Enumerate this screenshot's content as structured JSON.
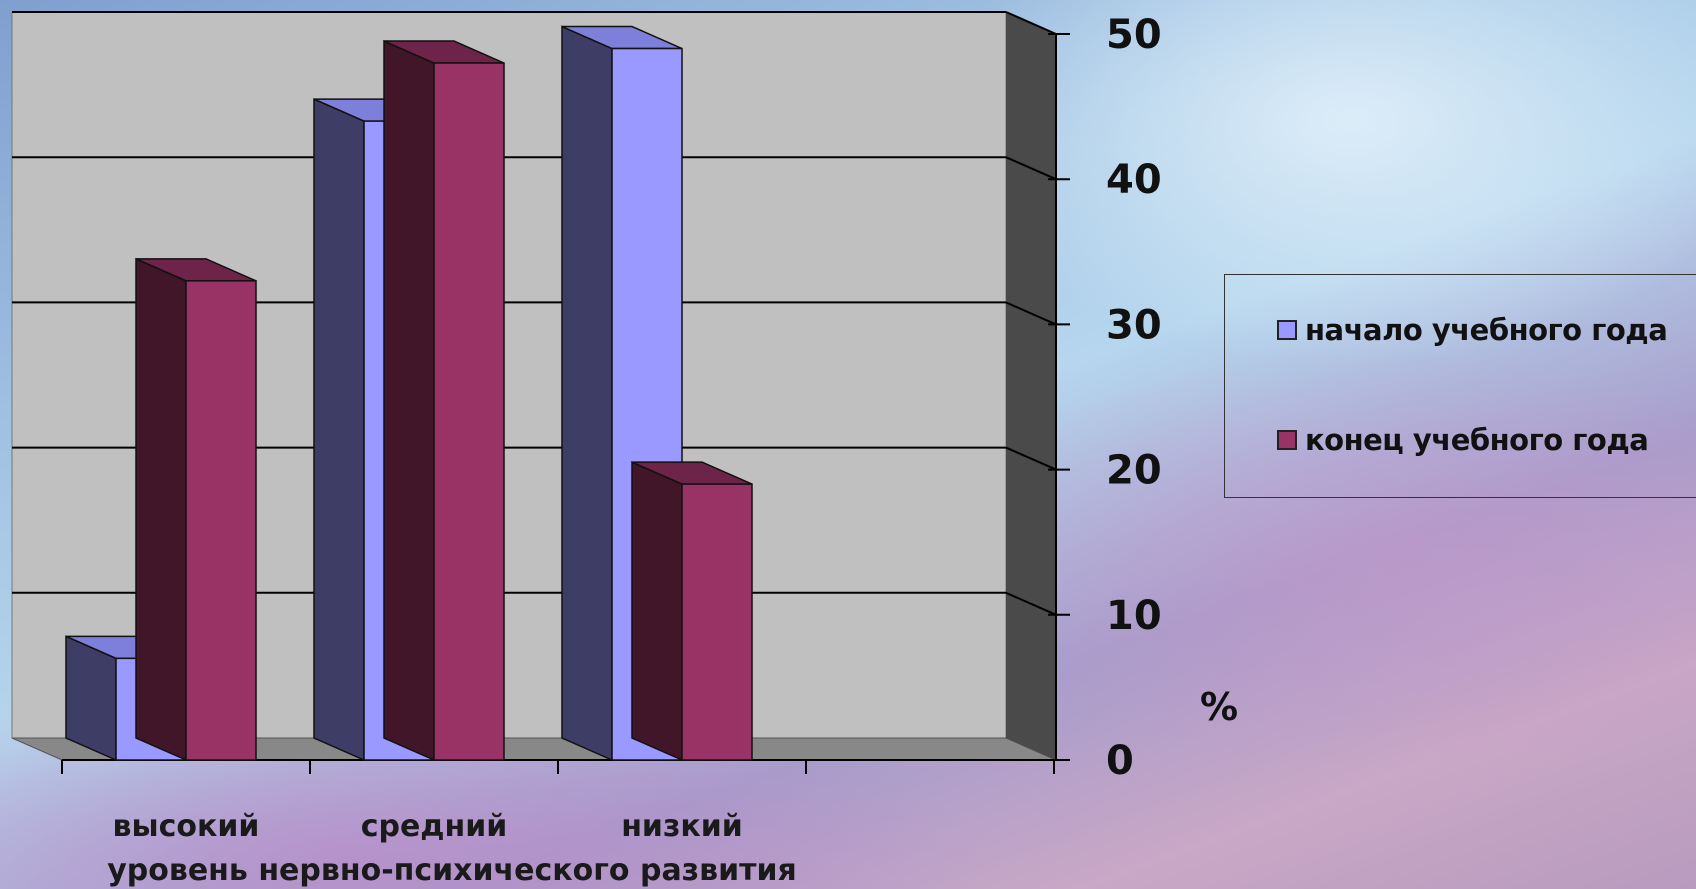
{
  "chart_data": {
    "type": "bar",
    "categories": [
      "высокий",
      "средний",
      "низкий"
    ],
    "series": [
      {
        "name": "начало учебного года",
        "values": [
          7,
          44,
          49
        ],
        "color": "#9a99ff"
      },
      {
        "name": "конец учебного года",
        "values": [
          33,
          48,
          19
        ],
        "color": "#993366"
      }
    ],
    "xlabel": "уровень нервно-психического развития",
    "unit_label": "%",
    "ylim": [
      0,
      50
    ],
    "yticks": [
      0,
      10,
      20,
      30,
      40,
      50
    ],
    "grid": true,
    "legend_position": "right",
    "style": "3d-column",
    "colors": {
      "wall": "#c0c0c0",
      "floor": "#888888",
      "side_wall": "#4a4a4a"
    }
  }
}
